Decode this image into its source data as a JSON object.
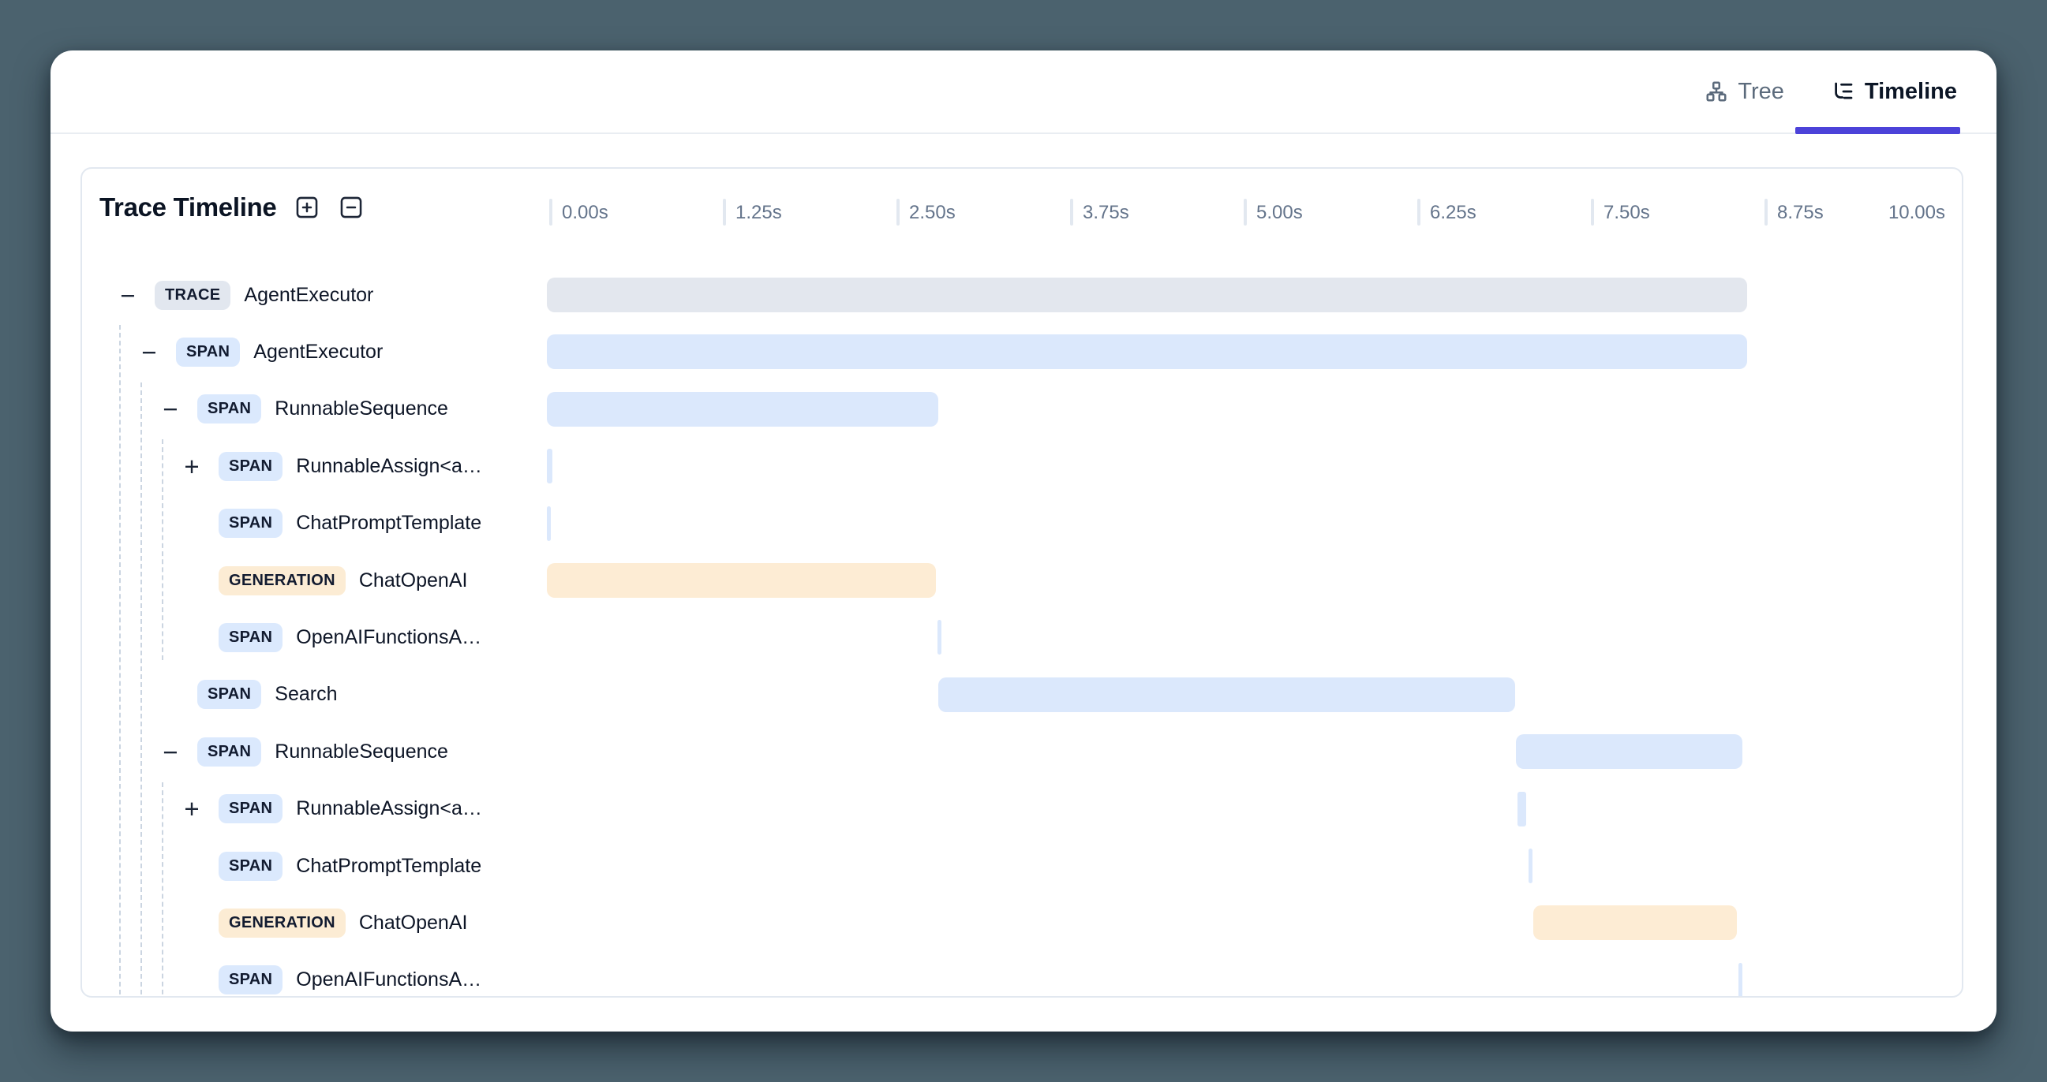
{
  "colors": {
    "page_background": "#4b626e",
    "card_background": "#ffffff",
    "active_tab_underline": "#4c42d9",
    "trace_color": "#e3e7ee",
    "span_color": "#dbe8fc",
    "generation_color": "#fdecd4",
    "axis_text": "#64748b",
    "tick": "#e2e8f0"
  },
  "tabs": {
    "tree_label": "Tree",
    "timeline_label": "Timeline",
    "active": "Timeline"
  },
  "panel": {
    "title": "Trace Timeline",
    "zoom_in_icon": "plus-square",
    "zoom_out_icon": "minus-square"
  },
  "axis": {
    "unit": "s",
    "range": [
      0,
      10
    ],
    "ticks": [
      {
        "label": "0.00s",
        "value": 0,
        "tick": true
      },
      {
        "label": "1.25s",
        "value": 1.25,
        "tick": true
      },
      {
        "label": "2.50s",
        "value": 2.5,
        "tick": true
      },
      {
        "label": "3.75s",
        "value": 3.75,
        "tick": true
      },
      {
        "label": "5.00s",
        "value": 5,
        "tick": true
      },
      {
        "label": "6.25s",
        "value": 6.25,
        "tick": true
      },
      {
        "label": "7.50s",
        "value": 7.5,
        "tick": true
      },
      {
        "label": "8.75s",
        "value": 8.75,
        "tick": true
      },
      {
        "label": "10.00s",
        "value": 10,
        "tick": false,
        "align": "right"
      }
    ]
  },
  "chart_data": {
    "type": "gantt",
    "time_unit": "seconds",
    "time_range": [
      0,
      10
    ],
    "rows": [
      {
        "badge": "TRACE",
        "kind": "trace",
        "label": "AgentExecutor",
        "depth": 0,
        "toggle": "collapse",
        "start": 0.0,
        "end": 8.64
      },
      {
        "badge": "SPAN",
        "kind": "span",
        "label": "AgentExecutor",
        "depth": 1,
        "toggle": "collapse",
        "start": 0.0,
        "end": 8.64
      },
      {
        "badge": "SPAN",
        "kind": "span",
        "label": "RunnableSequence",
        "depth": 2,
        "toggle": "collapse",
        "start": 0.0,
        "end": 2.82
      },
      {
        "badge": "SPAN",
        "kind": "span",
        "label": "RunnableAssign<a…",
        "depth": 3,
        "toggle": "expand",
        "start": 0.0,
        "end": 0.04
      },
      {
        "badge": "SPAN",
        "kind": "span",
        "label": "ChatPromptTemplate",
        "depth": 3,
        "toggle": null,
        "start": 0.0,
        "end": 0.02
      },
      {
        "badge": "GENERATION",
        "kind": "generation",
        "label": "ChatOpenAI",
        "depth": 3,
        "toggle": null,
        "start": 0.0,
        "end": 2.8
      },
      {
        "badge": "SPAN",
        "kind": "span",
        "label": "OpenAIFunctionsA…",
        "depth": 3,
        "toggle": null,
        "start": 2.81,
        "end": 2.84
      },
      {
        "badge": "SPAN",
        "kind": "span",
        "label": "Search",
        "depth": 2,
        "toggle": null,
        "start": 2.82,
        "end": 6.97
      },
      {
        "badge": "SPAN",
        "kind": "span",
        "label": "RunnableSequence",
        "depth": 2,
        "toggle": "collapse",
        "start": 6.98,
        "end": 8.61
      },
      {
        "badge": "SPAN",
        "kind": "span",
        "label": "RunnableAssign<a…",
        "depth": 3,
        "toggle": "expand",
        "start": 6.99,
        "end": 7.05
      },
      {
        "badge": "SPAN",
        "kind": "span",
        "label": "ChatPromptTemplate",
        "depth": 3,
        "toggle": null,
        "start": 7.07,
        "end": 7.09
      },
      {
        "badge": "GENERATION",
        "kind": "generation",
        "label": "ChatOpenAI",
        "depth": 3,
        "toggle": null,
        "start": 7.1,
        "end": 8.57
      },
      {
        "badge": "SPAN",
        "kind": "span",
        "label": "OpenAIFunctionsA…",
        "depth": 3,
        "toggle": null,
        "start": 8.58,
        "end": 8.61
      }
    ]
  },
  "glyphs": {
    "collapse": "−",
    "expand": "+"
  }
}
